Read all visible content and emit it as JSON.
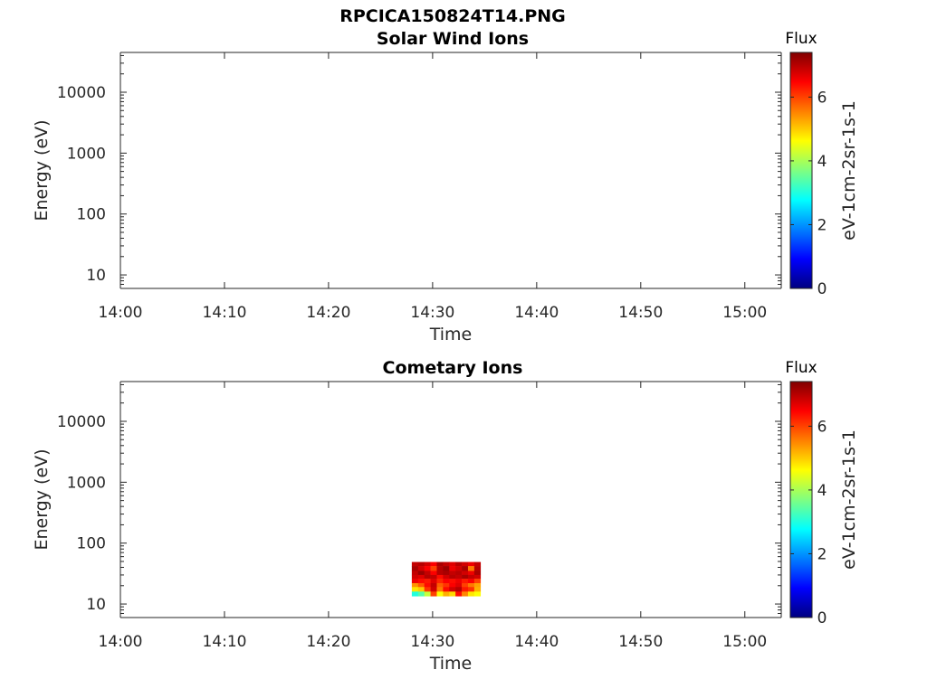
{
  "figure": {
    "title": "RPCICA150824T14.PNG"
  },
  "colors": {
    "axis": "#262626",
    "colormap": "jet"
  },
  "chart_data": [
    {
      "type": "heatmap",
      "title": "Solar Wind Ions",
      "xlabel": "Time",
      "ylabel": "Energy (eV)",
      "x_ticks": [
        "14:00",
        "14:10",
        "14:20",
        "14:30",
        "14:40",
        "14:50",
        "15:00"
      ],
      "x_range_minutes": [
        0,
        63.5
      ],
      "y_scale": "log",
      "y_ticks": [
        "10",
        "100",
        "1000",
        "10000"
      ],
      "y_range": [
        6,
        45000
      ],
      "colorbar": {
        "title": "Flux",
        "label": "eV-1cm-2sr-1s-1",
        "ticks": [
          "0",
          "2",
          "4",
          "6"
        ],
        "range": [
          0,
          7.4
        ]
      },
      "cells": []
    },
    {
      "type": "heatmap",
      "title": "Cometary Ions",
      "xlabel": "Time",
      "ylabel": "Energy (eV)",
      "x_ticks": [
        "14:00",
        "14:10",
        "14:20",
        "14:30",
        "14:40",
        "14:50",
        "15:00"
      ],
      "x_range_minutes": [
        0,
        63.5
      ],
      "y_scale": "log",
      "y_ticks": [
        "10",
        "100",
        "1000",
        "10000"
      ],
      "y_range": [
        6,
        45000
      ],
      "colorbar": {
        "title": "Flux",
        "label": "eV-1cm-2sr-1s-1",
        "ticks": [
          "0",
          "2",
          "4",
          "6"
        ],
        "range": [
          0,
          7.4
        ]
      },
      "time_bins_minutes": [
        28.0,
        28.6,
        29.2,
        29.8,
        30.4,
        31.0,
        31.6,
        32.2,
        32.8,
        33.4,
        34.0
      ],
      "time_end_minutes": 34.6,
      "energy_bins_eV": [
        49,
        42,
        35,
        30,
        26,
        22,
        19,
        16
      ],
      "energy_low_eV": 13.5,
      "flux_grid": [
        [
          6.9,
          7.0,
          6.8,
          6.5,
          7.1,
          6.9,
          6.7,
          7.0,
          6.8,
          6.6,
          6.9
        ],
        [
          7.1,
          6.8,
          6.5,
          6.0,
          7.0,
          7.2,
          6.6,
          6.8,
          7.1,
          5.6,
          7.0
        ],
        [
          6.9,
          7.2,
          6.9,
          6.5,
          7.0,
          7.1,
          6.9,
          7.0,
          6.8,
          6.6,
          7.1
        ],
        [
          6.8,
          6.7,
          7.0,
          6.9,
          6.4,
          6.8,
          7.0,
          6.9,
          7.1,
          6.9,
          6.8
        ],
        [
          6.6,
          6.4,
          6.3,
          6.7,
          6.2,
          6.5,
          6.4,
          6.6,
          6.3,
          6.5,
          6.0
        ],
        [
          5.4,
          5.8,
          6.4,
          6.9,
          5.8,
          6.1,
          6.5,
          6.7,
          6.0,
          5.6,
          5.3
        ],
        [
          4.8,
          5.0,
          6.1,
          6.8,
          5.6,
          6.4,
          6.8,
          7.0,
          6.3,
          6.1,
          5.2
        ],
        [
          3.0,
          3.4,
          4.2,
          6.0,
          4.6,
          5.2,
          4.9,
          6.4,
          5.5,
          4.8,
          4.6
        ]
      ]
    }
  ]
}
